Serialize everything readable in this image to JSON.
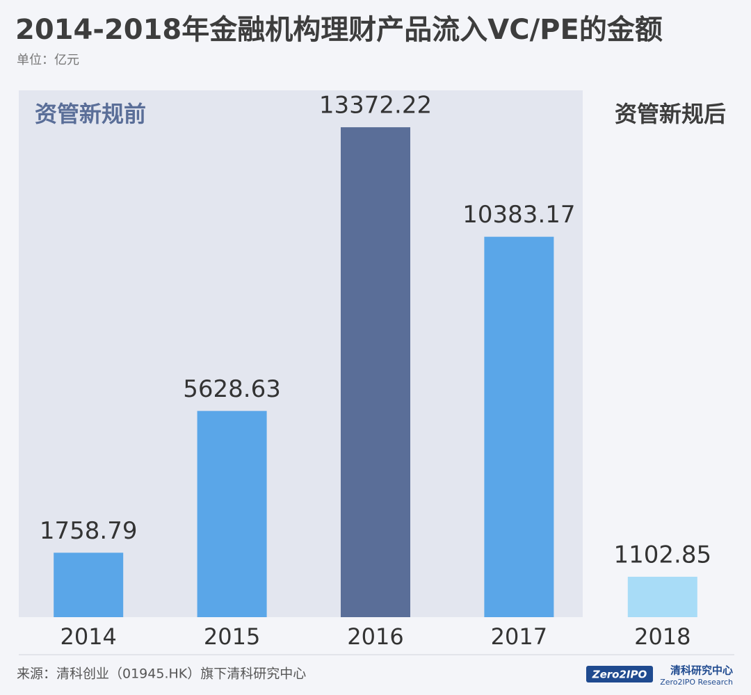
{
  "chart_data": {
    "type": "bar",
    "title": "2014-2018年金融机构理财产品流入VC/PE的金额",
    "subtitle": "单位：亿元",
    "annotations": [
      "资管新规前",
      "资管新规后"
    ],
    "categories": [
      "2014",
      "2015",
      "2016",
      "2017",
      "2018"
    ],
    "values": [
      1758.79,
      5628.63,
      13372.22,
      10383.17,
      1102.85
    ],
    "colors": [
      "#5aa6e8",
      "#5aa6e8",
      "#5a6e98",
      "#5aa6e8",
      "#a8dcf7"
    ],
    "ylim": [
      0,
      14000
    ],
    "source": "来源：清科创业（01945.HK）旗下清科研究中心",
    "logo": {
      "mark": "Zero2IPO",
      "name": "清科研究中心",
      "name_en": "Zero2IPO Research"
    }
  }
}
